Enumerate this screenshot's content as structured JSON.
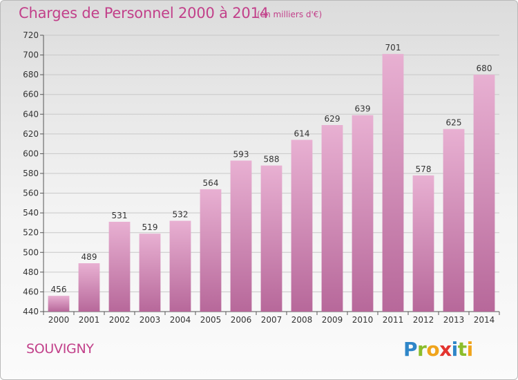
{
  "header": {
    "title": "Charges de Personnel 2000 à 2014",
    "subtitle": "(en milliers d'€)"
  },
  "footer": {
    "place": "SOUVIGNY",
    "logo_text": "Proxiti"
  },
  "colors": {
    "accent_text": "#c2408a",
    "bar_top": "#e8b0d2",
    "bar_bottom": "#b7689a",
    "grid": "#c8c8c8"
  },
  "chart_data": {
    "type": "bar",
    "categories": [
      "2000",
      "2001",
      "2002",
      "2003",
      "2004",
      "2005",
      "2006",
      "2007",
      "2008",
      "2009",
      "2010",
      "2011",
      "2012",
      "2013",
      "2014"
    ],
    "values": [
      456,
      489,
      531,
      519,
      532,
      564,
      593,
      588,
      614,
      629,
      639,
      701,
      578,
      625,
      680
    ],
    "ylim": [
      440,
      720
    ],
    "yticks": [
      440,
      460,
      480,
      500,
      520,
      540,
      560,
      580,
      600,
      620,
      640,
      660,
      680,
      700,
      720
    ],
    "grid": true,
    "data_labels": true
  }
}
